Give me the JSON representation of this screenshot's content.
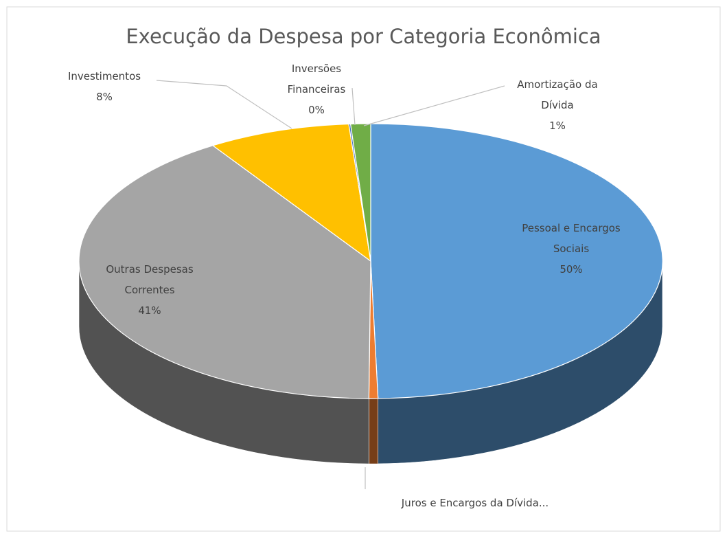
{
  "chart_data": {
    "type": "pie3d",
    "title": "Execução da Despesa por Categoria Econômica",
    "categories": [
      "Pessoal e Encargos Sociais",
      "Juros e Encargos da Dívida...",
      "Outras Despesas Correntes",
      "Investimentos",
      "Inversões Financeiras",
      "Amortização da Dívida"
    ],
    "values": [
      49.6,
      0.5,
      40.8,
      7.9,
      0.1,
      1.1
    ],
    "value_labels": [
      "50%",
      null,
      "41%",
      "8%",
      "0%",
      "1%"
    ],
    "colors": [
      "#5b9bd5",
      "#ed7d31",
      "#a5a5a5",
      "#ffc000",
      "#4472c4",
      "#70ad47"
    ]
  }
}
